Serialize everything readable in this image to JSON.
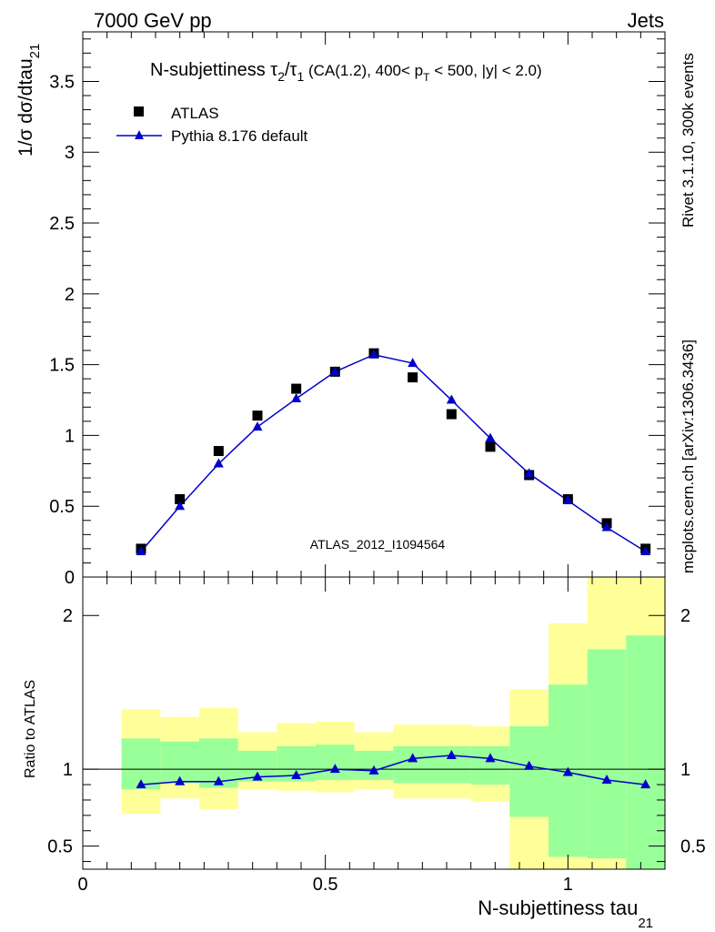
{
  "header": {
    "energy_label": "7000 GeV pp",
    "process_label": "Jets"
  },
  "side_labels": {
    "rivet_info": "Rivet 3.1.10,  300k events",
    "source_info": "mcplots.cern.ch [arXiv:1306.3436]"
  },
  "chart_data": [
    {
      "name": "main",
      "type": "scatter",
      "title_parts": {
        "prefix": "N-subjettiness ",
        "tau_num": "τ",
        "tau_num_sub": "2",
        "slash": "/",
        "tau_den": "τ",
        "tau_den_sub": "1",
        "cut_text": " (CA(1.2), 400< p",
        "pt_sub": "T",
        "cut_tail": " < 500, |y| < 2.0)"
      },
      "ylabel": "1/σ dσ/dtau",
      "ylabel_sub": "21",
      "xlim": [
        0,
        1.2
      ],
      "ylim": [
        0,
        3.85
      ],
      "yticks": [
        0.5,
        1,
        1.5,
        2,
        2.5,
        3,
        3.5
      ],
      "ytick_labels": [
        "0.5",
        "1",
        "1.5",
        "2",
        "2.5",
        "3",
        "3.5"
      ],
      "ytick_zero_label": "0",
      "analysis_label": "ATLAS_2012_I1094564",
      "legend": [
        {
          "label": "ATLAS",
          "marker": "square",
          "color": "#000000"
        },
        {
          "label": "Pythia 8.176 default",
          "marker": "triangle-line",
          "color": "#0000cc"
        }
      ],
      "series": [
        {
          "name": "ATLAS",
          "x": [
            0.12,
            0.2,
            0.28,
            0.36,
            0.44,
            0.52,
            0.6,
            0.68,
            0.76,
            0.84,
            0.92,
            1.0,
            1.08,
            1.16
          ],
          "values": [
            0.2,
            0.55,
            0.89,
            1.14,
            1.33,
            1.45,
            1.58,
            1.41,
            1.15,
            0.92,
            0.72,
            0.55,
            0.38,
            0.2
          ]
        },
        {
          "name": "Pythia 8.176 default",
          "x": [
            0.12,
            0.2,
            0.28,
            0.36,
            0.44,
            0.52,
            0.6,
            0.68,
            0.76,
            0.84,
            0.92,
            1.0,
            1.08,
            1.16
          ],
          "values": [
            0.18,
            0.5,
            0.8,
            1.06,
            1.26,
            1.45,
            1.57,
            1.51,
            1.25,
            0.98,
            0.73,
            0.54,
            0.35,
            0.18
          ]
        }
      ]
    },
    {
      "name": "ratio",
      "type": "scatter",
      "ylabel": "Ratio to ATLAS",
      "xlabel": "N-subjettiness tau",
      "xlabel_sub": "21",
      "xlim": [
        0,
        1.2
      ],
      "ylim": [
        0.35,
        2.25
      ],
      "xticks": [
        0,
        0.5,
        1
      ],
      "xtick_labels": [
        "0",
        "0.5",
        "1"
      ],
      "yticks": [
        0.5,
        1,
        2
      ],
      "ytick_labels": [
        "0.5",
        "1",
        "2"
      ],
      "reference_line": 1,
      "bins": [
        {
          "x0": 0.08,
          "x1": 0.16,
          "yellow": [
            0.71,
            1.39
          ],
          "green": [
            0.87,
            1.2
          ]
        },
        {
          "x0": 0.16,
          "x1": 0.24,
          "yellow": [
            0.81,
            1.34
          ],
          "green": [
            0.91,
            1.18
          ]
        },
        {
          "x0": 0.24,
          "x1": 0.32,
          "yellow": [
            0.74,
            1.4
          ],
          "green": [
            0.88,
            1.2
          ]
        },
        {
          "x0": 0.32,
          "x1": 0.4,
          "yellow": [
            0.87,
            1.24
          ],
          "green": [
            0.92,
            1.12
          ]
        },
        {
          "x0": 0.4,
          "x1": 0.48,
          "yellow": [
            0.86,
            1.3
          ],
          "green": [
            0.92,
            1.15
          ]
        },
        {
          "x0": 0.48,
          "x1": 0.56,
          "yellow": [
            0.85,
            1.31
          ],
          "green": [
            0.93,
            1.16
          ]
        },
        {
          "x0": 0.56,
          "x1": 0.64,
          "yellow": [
            0.87,
            1.24
          ],
          "green": [
            0.93,
            1.12
          ]
        },
        {
          "x0": 0.64,
          "x1": 0.72,
          "yellow": [
            0.81,
            1.29
          ],
          "green": [
            0.91,
            1.15
          ]
        },
        {
          "x0": 0.72,
          "x1": 0.8,
          "yellow": [
            0.81,
            1.29
          ],
          "green": [
            0.91,
            1.15
          ]
        },
        {
          "x0": 0.8,
          "x1": 0.88,
          "yellow": [
            0.79,
            1.28
          ],
          "green": [
            0.9,
            1.15
          ]
        },
        {
          "x0": 0.88,
          "x1": 0.96,
          "yellow": [
            0.25,
            1.52
          ],
          "green": [
            0.69,
            1.28
          ]
        },
        {
          "x0": 0.96,
          "x1": 1.04,
          "yellow": [
            0.2,
            1.95
          ],
          "green": [
            0.43,
            1.55
          ]
        },
        {
          "x0": 1.04,
          "x1": 1.12,
          "yellow": [
            0.2,
            2.4
          ],
          "green": [
            0.42,
            1.78
          ]
        },
        {
          "x0": 1.12,
          "x1": 1.2,
          "yellow": [
            0.2,
            2.4
          ],
          "green": [
            0.3,
            1.87
          ]
        }
      ],
      "series": [
        {
          "name": "Pythia 8.176 default / ATLAS",
          "x": [
            0.12,
            0.2,
            0.28,
            0.36,
            0.44,
            0.52,
            0.6,
            0.68,
            0.76,
            0.84,
            0.92,
            1.0,
            1.08,
            1.16
          ],
          "values": [
            0.9,
            0.92,
            0.92,
            0.95,
            0.96,
            1.0,
            0.99,
            1.07,
            1.09,
            1.07,
            1.02,
            0.98,
            0.93,
            0.9
          ]
        }
      ]
    }
  ],
  "colors": {
    "atlas_marker": "#000000",
    "pythia_line": "#0000cc",
    "band_yellow": "#ffff99",
    "band_green": "#99ff99",
    "analysis_label": "#999999",
    "side_label": "#808080"
  }
}
